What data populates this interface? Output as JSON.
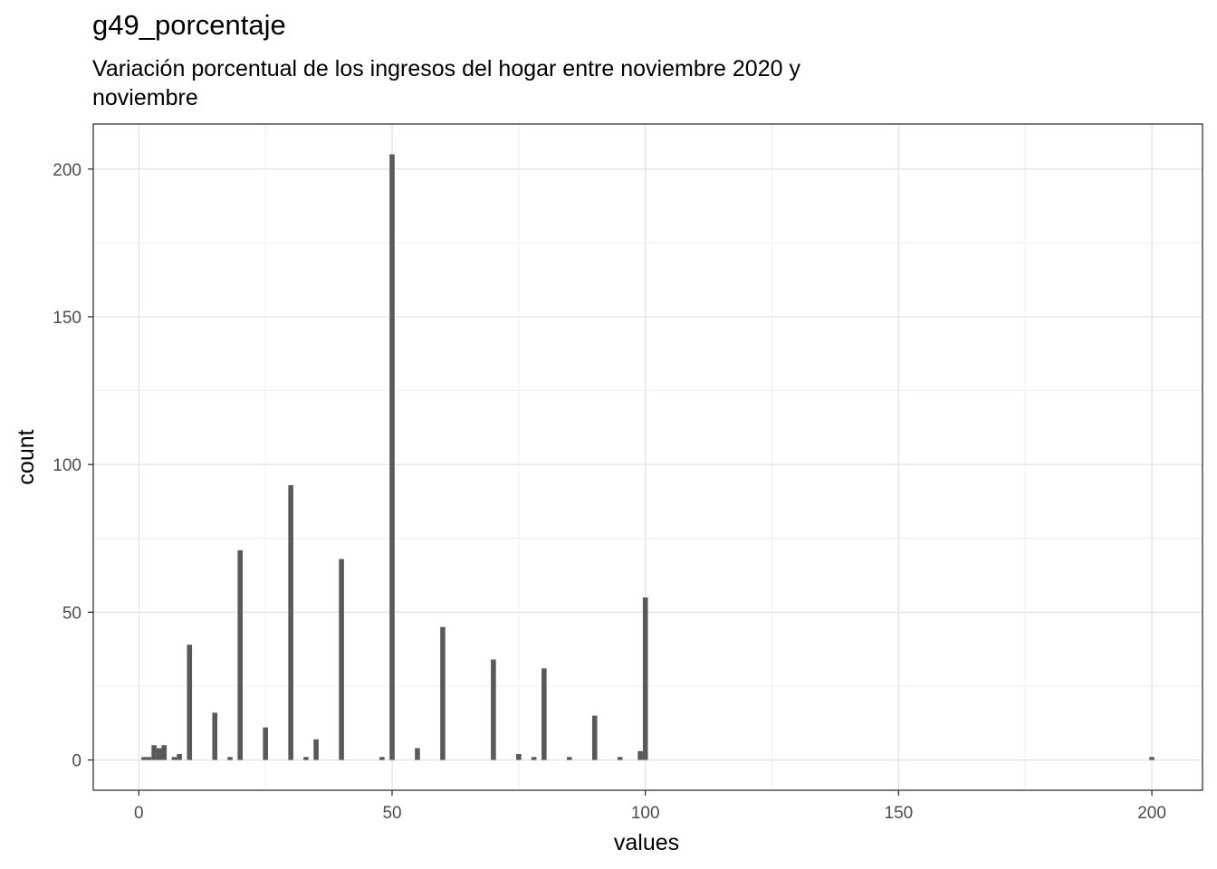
{
  "chart_data": {
    "type": "bar",
    "title": "g49_porcentaje",
    "subtitle": "Variación porcentual de los ingresos del hogar entre noviembre 2020 y\nnoviembre",
    "xlabel": "values",
    "ylabel": "count",
    "xlim": [
      -9,
      210
    ],
    "ylim": [
      -10.25,
      215.25
    ],
    "x_ticks": [
      0,
      50,
      100,
      150,
      200
    ],
    "y_ticks": [
      0,
      50,
      100,
      150,
      200
    ],
    "x": [
      1,
      2,
      3,
      4,
      5,
      7,
      8,
      10,
      15,
      18,
      20,
      25,
      30,
      33,
      35,
      40,
      48,
      50,
      55,
      60,
      70,
      75,
      78,
      80,
      85,
      90,
      95,
      99,
      100,
      200
    ],
    "values": [
      1,
      1,
      5,
      4,
      5,
      1,
      2,
      39,
      16,
      1,
      71,
      11,
      93,
      1,
      7,
      68,
      1,
      205,
      4,
      45,
      34,
      2,
      1,
      31,
      1,
      15,
      1,
      3,
      55,
      1
    ],
    "grid": true,
    "bar_color": "#595959"
  }
}
